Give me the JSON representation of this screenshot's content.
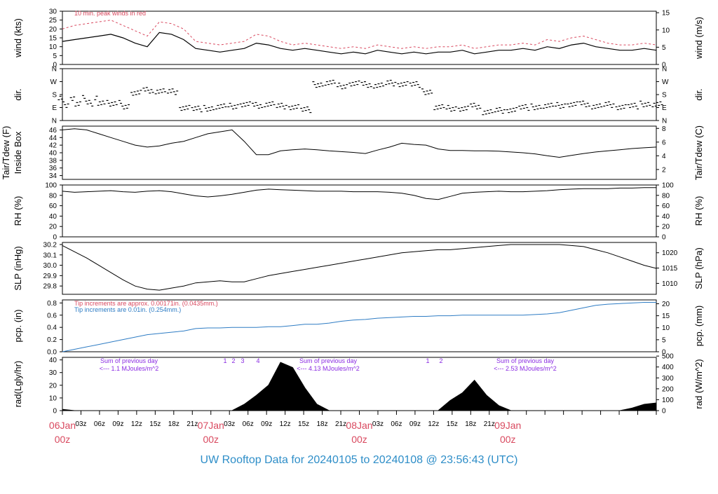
{
  "footer": {
    "title": "UW Rooftop Data for 20240105  to  20240108 @ 23:56:43  (UTC)"
  },
  "colors": {
    "axis": "#000000",
    "red": "#d9495f",
    "blue": "#2e7cc4",
    "purple": "#8a2be2",
    "title": "#2e8ec8"
  },
  "chart_data": [
    {
      "id": "wind",
      "type": "line",
      "ylabel_left": "wind (kts)",
      "ylabel_right": "wind (m/s)",
      "ylim": [
        0,
        30
      ],
      "yticks": [
        0,
        5,
        10,
        15,
        20,
        25,
        30
      ],
      "yticks_right": [
        0,
        5,
        10,
        15
      ],
      "annotation": "10 min. peak winds in red",
      "series": [
        {
          "values_kts": [
            13,
            14,
            15,
            16,
            17,
            15,
            12,
            10,
            18,
            17,
            14,
            9,
            8,
            7,
            8,
            9,
            12,
            11,
            9,
            8,
            9,
            8,
            7,
            6,
            7,
            6,
            8,
            7,
            6,
            7,
            6,
            7,
            7,
            8,
            6,
            7,
            8,
            8,
            9,
            8,
            10,
            9,
            11,
            12,
            10,
            9,
            8,
            8,
            9,
            8
          ],
          "color": "#000000"
        },
        {
          "values_kts": [
            20,
            22,
            23,
            24,
            25,
            22,
            19,
            16,
            24,
            23,
            20,
            13,
            12,
            11,
            12,
            13,
            17,
            16,
            13,
            11,
            12,
            11,
            10,
            9,
            10,
            9,
            11,
            10,
            9,
            10,
            9,
            10,
            10,
            11,
            9,
            10,
            11,
            11,
            12,
            11,
            14,
            13,
            15,
            16,
            14,
            12,
            11,
            11,
            12,
            11
          ],
          "color": "#d9495f",
          "style": "dashed"
        }
      ]
    },
    {
      "id": "dir",
      "type": "scatter",
      "ylabel_left": "dir.",
      "ylabel_right": "dir.",
      "yticks": [
        "N",
        "E",
        "S",
        "W",
        "N"
      ],
      "values_deg": [
        110,
        115,
        120,
        125,
        110,
        100,
        190,
        210,
        205,
        200,
        90,
        80,
        85,
        95,
        100,
        110,
        105,
        115,
        100,
        95,
        75,
        250,
        260,
        240,
        255,
        250,
        245,
        260,
        255,
        250,
        200,
        90,
        85,
        80,
        100,
        60,
        70,
        75,
        90,
        95,
        100,
        105,
        110,
        115,
        100,
        110,
        95,
        100,
        115,
        110
      ]
    },
    {
      "id": "temp",
      "type": "line",
      "ylabel_left": "Tair/Tdew (F)",
      "ylabel_left2": "Inside Box",
      "ylabel_right": "Tair/Tdew (C)",
      "ylim": [
        33,
        47
      ],
      "yticks": [
        34,
        36,
        38,
        40,
        42,
        44,
        46
      ],
      "yticks_right": [
        2,
        4,
        6,
        8
      ],
      "values_f": [
        46,
        46.3,
        46,
        45,
        44,
        43,
        42,
        41.5,
        41.8,
        42.5,
        43,
        44,
        45,
        45.5,
        46,
        43,
        39.5,
        39.5,
        40.5,
        40.8,
        41,
        40.8,
        40.5,
        40.3,
        40.1,
        39.8,
        40.7,
        41.5,
        42.5,
        42.2,
        42,
        41,
        40.6,
        40.6,
        40.5,
        40.5,
        40.4,
        40.2,
        40,
        39.7,
        39.2,
        38.8,
        39.3,
        39.8,
        40.2,
        40.5,
        40.8,
        41.1,
        41.3,
        41.5
      ]
    },
    {
      "id": "rh",
      "type": "line",
      "ylabel_left": "RH (%)",
      "ylabel_right": "RH (%)",
      "ylim": [
        0,
        100
      ],
      "yticks": [
        0,
        20,
        40,
        60,
        80,
        100
      ],
      "values": [
        88,
        86,
        87,
        88,
        89,
        87,
        86,
        88,
        89,
        87,
        83,
        79,
        77,
        79,
        82,
        86,
        90,
        92,
        91,
        90,
        89,
        88,
        88,
        88,
        87,
        87,
        87,
        86,
        84,
        80,
        74,
        72,
        78,
        84,
        86,
        87,
        88,
        87,
        87,
        88,
        89,
        91,
        92,
        93,
        93,
        93,
        94,
        94,
        95,
        95
      ]
    },
    {
      "id": "slp",
      "type": "line",
      "ylabel_left": "SLP (inHg)",
      "ylabel_right": "SLP (hPa)",
      "ylim": [
        29.72,
        30.22
      ],
      "yticks": [
        29.8,
        29.9,
        30.0,
        30.1,
        30.2
      ],
      "yticks_right": [
        1010,
        1015,
        1020
      ],
      "values": [
        30.19,
        30.13,
        30.07,
        30.0,
        29.93,
        29.86,
        29.8,
        29.77,
        29.76,
        29.78,
        29.8,
        29.83,
        29.84,
        29.85,
        29.84,
        29.84,
        29.87,
        29.9,
        29.92,
        29.94,
        29.96,
        29.98,
        30.0,
        30.02,
        30.04,
        30.06,
        30.08,
        30.1,
        30.12,
        30.13,
        30.14,
        30.15,
        30.15,
        30.16,
        30.17,
        30.18,
        30.19,
        30.2,
        30.2,
        30.2,
        30.2,
        30.2,
        30.19,
        30.18,
        30.15,
        30.12,
        30.08,
        30.04,
        30.0,
        29.97
      ]
    },
    {
      "id": "pcp",
      "type": "line",
      "ylabel_left": "pcp. (in)",
      "ylabel_right": "pcp. (mm)",
      "ylim": [
        0,
        0.85
      ],
      "yticks": [
        0.0,
        0.2,
        0.4,
        0.6,
        0.8
      ],
      "yticks_right": [
        0,
        5,
        10,
        15,
        20
      ],
      "annotation_red": "Tip increments are approx. 0.00171in. (0.0435mm.)",
      "annotation_blue": "Tip increments are 0.01in. (0.254mm.)",
      "values": [
        0,
        0.04,
        0.08,
        0.12,
        0.16,
        0.2,
        0.24,
        0.28,
        0.3,
        0.32,
        0.34,
        0.38,
        0.39,
        0.39,
        0.4,
        0.4,
        0.4,
        0.41,
        0.41,
        0.43,
        0.45,
        0.45,
        0.47,
        0.5,
        0.52,
        0.53,
        0.55,
        0.56,
        0.57,
        0.58,
        0.58,
        0.59,
        0.59,
        0.6,
        0.6,
        0.6,
        0.6,
        0.6,
        0.6,
        0.61,
        0.62,
        0.64,
        0.68,
        0.72,
        0.76,
        0.78,
        0.79,
        0.8,
        0.81,
        0.81
      ]
    },
    {
      "id": "rad",
      "type": "area",
      "ylabel_left": "rad(Lgly/hr)",
      "ylabel_right": "rad (W/m^2)",
      "ylim": [
        0,
        42
      ],
      "yticks": [
        0,
        10,
        20,
        30,
        40
      ],
      "yticks_right": [
        0,
        100,
        200,
        300,
        400,
        500
      ],
      "values": [
        1,
        0,
        0,
        0,
        0,
        0,
        0,
        0,
        0,
        0,
        0,
        0,
        0,
        0,
        0,
        5,
        12,
        20,
        38,
        34,
        18,
        5,
        0,
        0,
        0,
        0,
        0,
        0,
        0,
        0,
        0,
        0,
        8,
        14,
        24,
        12,
        4,
        0,
        0,
        0,
        0,
        0,
        0,
        0,
        0,
        0,
        0,
        2,
        5,
        6
      ],
      "annotations": [
        {
          "line1": "Sum of previous day",
          "line2": "<--- 1.1 MJoules/m^2"
        },
        {
          "line1": "Sum of previous day",
          "line2": "<--- 4.13 MJoules/m^2"
        },
        {
          "line1": "Sum of previous day",
          "line2": "<--- 2.53 MJoules/m^2"
        }
      ],
      "markers": [
        "1",
        "2",
        "3",
        "4",
        "1",
        "2"
      ]
    }
  ],
  "xaxis": {
    "hour_labels": [
      "03z",
      "06z",
      "09z",
      "12z",
      "15z",
      "18z",
      "21z",
      "03z",
      "06z",
      "09z",
      "12z",
      "15z",
      "18z",
      "21z",
      "03z",
      "06z",
      "09z",
      "12z",
      "15z",
      "18z",
      "21z"
    ],
    "day_labels": [
      {
        "day": "06Jan",
        "hour": "00z"
      },
      {
        "day": "07Jan",
        "hour": "00z"
      },
      {
        "day": "08Jan",
        "hour": "00z"
      },
      {
        "day": "09Jan",
        "hour": "00z"
      }
    ]
  }
}
